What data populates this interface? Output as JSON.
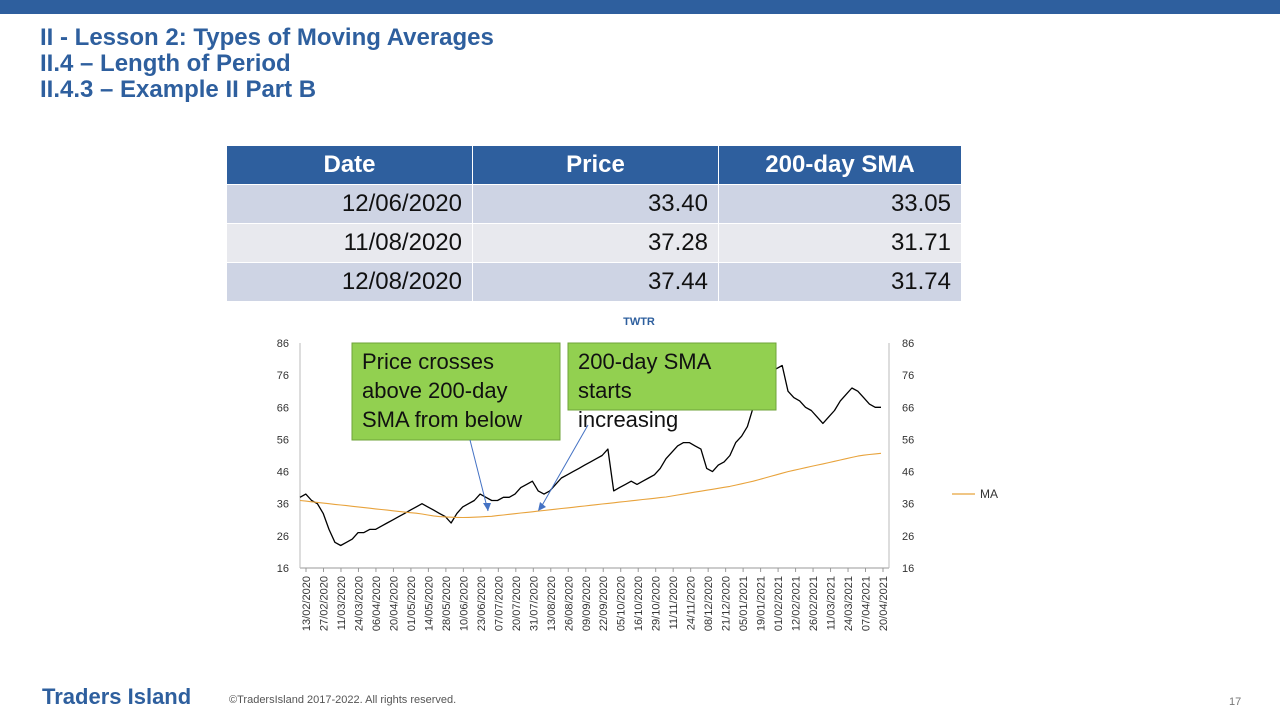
{
  "titles": {
    "line1": "II - Lesson 2: Types of Moving Averages",
    "line2": "II.4 – Length of Period",
    "line3": "II.4.3 – Example II Part B"
  },
  "table": {
    "headers": [
      "Date",
      "Price",
      "200-day SMA"
    ],
    "rows": [
      [
        "12/06/2020",
        "33.40",
        "33.05"
      ],
      [
        "11/08/2020",
        "37.28",
        "31.71"
      ],
      [
        "12/08/2020",
        "37.44",
        "31.74"
      ]
    ]
  },
  "chart_data": {
    "type": "line",
    "title": "TWTR",
    "ylim": [
      16,
      86
    ],
    "yticks": [
      86,
      76,
      66,
      56,
      46,
      36,
      26,
      16
    ],
    "xticks": [
      "13/02/2020",
      "27/02/2020",
      "11/03/2020",
      "24/03/2020",
      "06/04/2020",
      "20/04/2020",
      "01/05/2020",
      "14/05/2020",
      "28/05/2020",
      "10/06/2020",
      "23/06/2020",
      "07/07/2020",
      "20/07/2020",
      "31/07/2020",
      "13/08/2020",
      "26/08/2020",
      "09/09/2020",
      "22/09/2020",
      "05/10/2020",
      "16/10/2020",
      "29/10/2020",
      "11/11/2020",
      "24/11/2020",
      "08/12/2020",
      "21/12/2020",
      "05/01/2021",
      "19/01/2021",
      "01/02/2021",
      "12/02/2021",
      "26/02/2021",
      "11/03/2021",
      "24/03/2021",
      "07/04/2021",
      "20/04/2021"
    ],
    "series": [
      {
        "name": "",
        "color": "#000000",
        "values": [
          38,
          39,
          37,
          36,
          33,
          28,
          24,
          23,
          24,
          25,
          27,
          27,
          28,
          28,
          29,
          30,
          31,
          32,
          33,
          34,
          35,
          36,
          35,
          34,
          33,
          32,
          30,
          33,
          35,
          36,
          37,
          39,
          38,
          37,
          37,
          38,
          38,
          39,
          41,
          42,
          43,
          40,
          39,
          40,
          42,
          44,
          45,
          46,
          47,
          48,
          49,
          50,
          51,
          53,
          40,
          41,
          42,
          43,
          42,
          43,
          44,
          45,
          47,
          50,
          52,
          54,
          55,
          55,
          54,
          53,
          47,
          46,
          48,
          49,
          51,
          55,
          57,
          60,
          66,
          72,
          74,
          76,
          78,
          79,
          71,
          69,
          68,
          66,
          65,
          63,
          61,
          63,
          65,
          68,
          70,
          72,
          71,
          69,
          67,
          66,
          66
        ]
      },
      {
        "name": "MA",
        "color": "#E8A33C",
        "values": [
          37,
          36.8,
          36.6,
          36.4,
          36.2,
          36,
          35.8,
          35.6,
          35.4,
          35.2,
          35,
          34.8,
          34.6,
          34.4,
          34.2,
          34,
          33.8,
          33.6,
          33.4,
          33.2,
          33.05,
          32.8,
          32.5,
          32.2,
          32,
          31.9,
          31.8,
          31.75,
          31.71,
          31.74,
          31.8,
          31.9,
          32,
          32.1,
          32.3,
          32.5,
          32.7,
          32.9,
          33.1,
          33.3,
          33.5,
          33.7,
          33.9,
          34.1,
          34.3,
          34.5,
          34.7,
          34.9,
          35.1,
          35.3,
          35.5,
          35.7,
          35.9,
          36.1,
          36.3,
          36.5,
          36.7,
          36.9,
          37.1,
          37.3,
          37.5,
          37.7,
          37.9,
          38.1,
          38.4,
          38.7,
          39,
          39.3,
          39.6,
          39.9,
          40.2,
          40.5,
          40.8,
          41.1,
          41.4,
          41.8,
          42.2,
          42.6,
          43,
          43.5,
          44,
          44.5,
          45,
          45.5,
          46,
          46.4,
          46.8,
          47.2,
          47.6,
          48,
          48.4,
          48.8,
          49.2,
          49.6,
          50,
          50.4,
          50.8,
          51.1,
          51.3,
          51.5,
          51.7
        ]
      }
    ],
    "legend": "MA",
    "annotations": [
      "Price crosses above 200-day SMA from below",
      "200-day SMA starts increasing"
    ]
  },
  "footer": {
    "brand": "Traders Island",
    "copyright": "©TradersIsland 2017-2022. All rights reserved.",
    "page": "17"
  },
  "colors": {
    "brand": "#2E5F9E",
    "annotation_fill": "#92D050",
    "annotation_border": "#6FA33A"
  }
}
